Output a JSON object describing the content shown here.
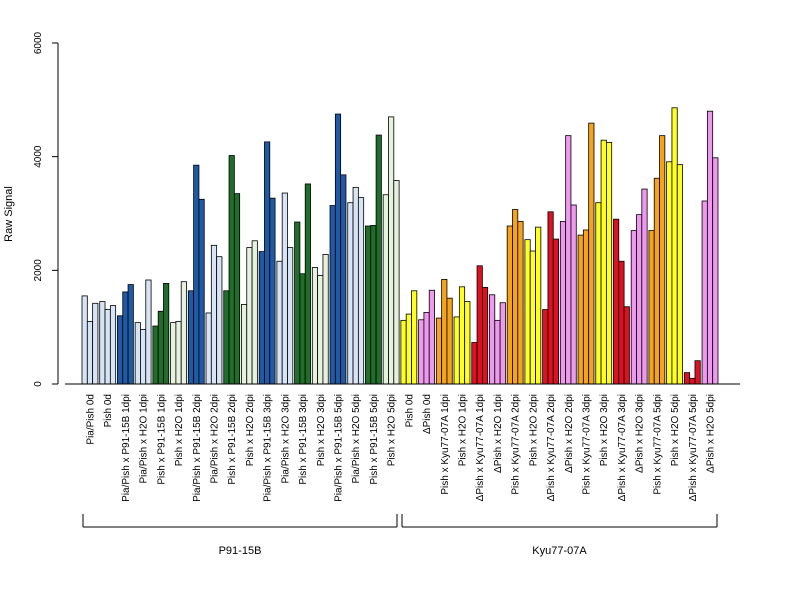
{
  "chart_data": {
    "type": "bar",
    "title": "",
    "xlabel": "",
    "ylabel": "Raw Signal",
    "ylim": [
      0,
      6000
    ],
    "yticks": [
      0,
      2000,
      4000,
      6000
    ],
    "grid": false,
    "legend": "none",
    "categories": [
      "Pia/Pish 0d",
      "Pish 0d",
      "Pia/Pish x P91-15B 1dpi",
      "Pia/Pish x H2O 1dpi",
      "Pish x P91-15B 1dpi",
      "Pish x H2O 1dpi",
      "Pia/Pish x P91-15B 2dpi",
      "Pia/Pish x H2O 2dpi",
      "Pish x P91-15B 2dpi",
      "Pish x H2O 2dpi",
      "Pia/Pish x P91-15B 3dpi",
      "Pia/Pish x H2O 3dpi",
      "Pish x P91-15B 3dpi",
      "Pish x H2O 3dpi",
      "Pia/Pish x P91-15B 5dpi",
      "Pia/Pish x H2O 5dpi",
      "Pish x P91-15B 5dpi",
      "Pish x H2O 5dpi",
      "Pish 0d",
      "ΔPish 0d",
      "Pish x Kyu77-07A 1dpi",
      "Pish x H2O 1dpi",
      "ΔPish x Kyu77-07A 1dpi",
      "ΔPish x H2O 1dpi",
      "Pish x Kyu77-07A 2dpi",
      "Pish x H2O 2dpi",
      "ΔPish x Kyu77-07A 2dpi",
      "ΔPish x H2O 2dpi",
      "Pish x Kyu77-07A 3dpi",
      "Pish x H2O 3dpi",
      "ΔPish x Kyu77-07A 3dpi",
      "ΔPish x H2O 3dpi",
      "Pish x Kyu77-07A 5dpi",
      "Pish x H2O 5dpi",
      "ΔPish x Kyu77-07A 5dpi",
      "ΔPish x H2O 5dpi"
    ],
    "colors": [
      "#d7e4f5",
      "#d7e4f5",
      "#1f5aa6",
      "#d7e4f5",
      "#1f6e2a",
      "#e6f2de",
      "#1f5aa6",
      "#d7e4f5",
      "#1f6e2a",
      "#e6f2de",
      "#1f5aa6",
      "#d7e4f5",
      "#1f6e2a",
      "#e6f2de",
      "#1f5aa6",
      "#d7e4f5",
      "#1f6e2a",
      "#e6f2de",
      "#ffff22",
      "#ee99ee",
      "#f5a31a",
      "#ffff22",
      "#dd1122",
      "#ee99ee",
      "#f5a31a",
      "#ffff22",
      "#dd1122",
      "#ee99ee",
      "#f5a31a",
      "#ffff22",
      "#dd1122",
      "#ee99ee",
      "#f5a31a",
      "#ffff22",
      "#dd1122",
      "#ee99ee"
    ],
    "values": [
      [
        1550,
        1100,
        1420
      ],
      [
        1450,
        1310,
        1380
      ],
      [
        1200,
        1620,
        1750
      ],
      [
        1080,
        960,
        1830
      ],
      [
        1020,
        1280,
        1770
      ],
      [
        1080,
        1100,
        1800
      ],
      [
        1640,
        3850,
        3250
      ],
      [
        1250,
        2440,
        2240
      ],
      [
        1640,
        4020,
        3350
      ],
      [
        1400,
        2400,
        2520
      ],
      [
        2330,
        4260,
        3270
      ],
      [
        2160,
        3360,
        2400
      ],
      [
        2850,
        1940,
        3520
      ],
      [
        2050,
        1910,
        2280
      ],
      [
        3140,
        4750,
        3680
      ],
      [
        3190,
        3460,
        3280
      ],
      [
        2780,
        2790,
        4380
      ],
      [
        3330,
        4700,
        3580
      ],
      [
        1120,
        1230,
        1640
      ],
      [
        1130,
        1260,
        1650
      ],
      [
        1160,
        1840,
        1510
      ],
      [
        1180,
        1710,
        1450
      ],
      [
        730,
        2080,
        1700
      ],
      [
        1570,
        1120,
        1430
      ],
      [
        2780,
        3070,
        2860
      ],
      [
        2540,
        2340,
        2760
      ],
      [
        1310,
        3030,
        2550
      ],
      [
        2860,
        4370,
        3150
      ],
      [
        2620,
        2710,
        4590
      ],
      [
        3190,
        4290,
        4250
      ],
      [
        2900,
        2160,
        1360
      ],
      [
        2700,
        2980,
        3430
      ],
      [
        2700,
        3620,
        4370
      ],
      [
        3910,
        4860,
        3860
      ],
      [
        200,
        100,
        410
      ],
      [
        3220,
        4800,
        3980
      ]
    ],
    "groups": [
      {
        "label": "P91-15B",
        "from": 0,
        "to": 17
      },
      {
        "label": "Kyu77-07A",
        "from": 18,
        "to": 35
      }
    ]
  }
}
